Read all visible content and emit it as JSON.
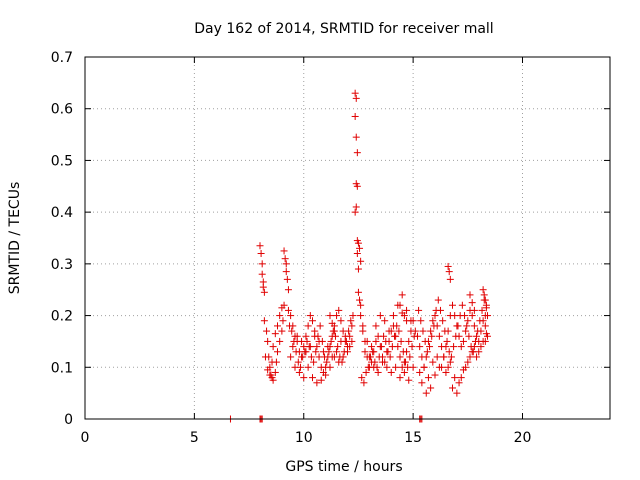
{
  "chart_data": {
    "type": "scatter",
    "title": "Day 162 of 2014, SRMTID for receiver mall",
    "xlabel": "GPS time / hours",
    "ylabel": "SRMTID / TECUs",
    "xlim": [
      0,
      24
    ],
    "ylim": [
      0,
      0.7
    ],
    "xticks": [
      0,
      5,
      10,
      15,
      20
    ],
    "xtick_labels": [
      "0",
      "5",
      "10",
      "15",
      "20"
    ],
    "yticks": [
      0,
      0.1,
      0.2,
      0.3,
      0.4,
      0.5,
      0.6,
      0.7
    ],
    "ytick_labels": [
      "0",
      "0.1",
      "0.2",
      "0.3",
      "0.4",
      "0.5",
      "0.6",
      "0.7"
    ],
    "grid": true,
    "marker": "plus",
    "color": "#e00000",
    "series": [
      {
        "name": "SRMTID",
        "x": [
          6.65,
          8.0,
          8.05,
          8.1,
          15.3,
          15.35,
          15.4,
          8.0,
          8.05,
          8.1,
          8.1,
          8.15,
          8.15,
          8.2,
          9.1,
          9.15,
          9.2,
          9.2,
          9.25,
          9.3,
          12.35,
          12.4,
          12.35,
          12.4,
          12.45,
          12.4,
          12.45,
          12.4,
          12.35,
          12.45,
          12.5,
          12.55,
          12.45,
          12.6,
          12.5,
          16.6,
          16.65,
          16.7,
          8.2,
          8.3,
          8.35,
          8.4,
          8.45,
          8.5,
          8.55,
          8.6,
          8.7,
          8.75,
          8.8,
          8.9,
          9.0,
          9.05,
          8.25,
          8.35,
          8.45,
          8.55,
          8.6,
          8.7,
          8.8,
          8.9,
          9.0,
          9.1,
          9.3,
          9.4,
          9.5,
          9.6,
          9.7,
          9.8,
          9.9,
          10.0,
          10.1,
          10.2,
          10.3,
          10.4,
          10.5,
          10.6,
          10.7,
          10.8,
          10.9,
          11.0,
          11.1,
          11.2,
          11.3,
          11.4,
          11.5,
          11.6,
          11.7,
          11.8,
          11.9,
          12.0,
          12.1,
          12.2,
          9.35,
          9.45,
          9.55,
          9.65,
          9.75,
          9.85,
          9.95,
          10.05,
          10.15,
          10.25,
          10.35,
          10.45,
          10.55,
          10.65,
          10.75,
          10.85,
          10.95,
          11.05,
          11.15,
          11.25,
          11.35,
          11.45,
          11.55,
          11.65,
          11.75,
          11.85,
          11.95,
          12.05,
          12.15,
          12.25,
          9.4,
          9.6,
          9.8,
          10.0,
          10.2,
          10.4,
          10.6,
          10.8,
          11.0,
          11.2,
          11.4,
          11.6,
          11.8,
          12.0,
          12.2,
          9.5,
          9.7,
          9.9,
          10.1,
          10.3,
          10.5,
          10.7,
          10.9,
          11.1,
          11.3,
          11.5,
          11.7,
          11.9,
          12.1,
          12.6,
          12.7,
          12.8,
          12.9,
          13.0,
          13.1,
          13.2,
          13.3,
          13.4,
          13.5,
          13.6,
          13.7,
          13.8,
          13.9,
          14.0,
          14.1,
          14.2,
          14.3,
          14.4,
          14.5,
          14.6,
          14.7,
          14.8,
          14.9,
          15.0,
          12.65,
          12.75,
          12.85,
          12.95,
          13.05,
          13.15,
          13.25,
          13.35,
          13.45,
          13.55,
          13.65,
          13.75,
          13.85,
          13.95,
          14.05,
          14.15,
          14.25,
          14.35,
          14.45,
          14.55,
          14.65,
          14.75,
          14.85,
          14.95,
          15.05,
          12.7,
          12.9,
          13.1,
          13.3,
          13.5,
          13.7,
          13.9,
          14.1,
          14.3,
          14.5,
          14.7,
          14.9,
          15.1,
          12.8,
          13.0,
          13.2,
          13.4,
          13.6,
          13.8,
          14.0,
          14.2,
          14.4,
          14.6,
          14.8,
          15.0,
          15.2,
          15.3,
          15.4,
          15.5,
          15.6,
          15.7,
          15.8,
          15.9,
          16.0,
          16.1,
          16.2,
          16.3,
          16.4,
          16.5,
          16.6,
          16.7,
          16.8,
          16.9,
          17.0,
          17.1,
          17.2,
          17.3,
          17.4,
          17.5,
          17.6,
          17.7,
          17.8,
          17.9,
          18.0,
          18.1,
          18.2,
          18.3,
          15.25,
          15.35,
          15.45,
          15.55,
          15.65,
          15.75,
          15.85,
          15.95,
          16.05,
          16.15,
          16.25,
          16.35,
          16.45,
          16.55,
          16.65,
          16.75,
          16.85,
          16.95,
          17.05,
          17.15,
          17.25,
          17.35,
          17.45,
          17.55,
          17.65,
          17.75,
          17.85,
          17.95,
          18.05,
          18.15,
          18.25,
          18.35,
          15.3,
          15.5,
          15.7,
          15.9,
          16.1,
          16.3,
          16.5,
          16.7,
          16.9,
          17.1,
          17.3,
          17.5,
          17.7,
          17.9,
          18.1,
          18.3,
          15.4,
          15.6,
          15.8,
          16.0,
          16.2,
          16.4,
          16.6,
          16.8,
          17.0,
          17.2,
          17.4,
          17.6,
          17.8,
          18.0,
          18.2,
          18.4,
          18.2,
          18.25,
          18.3,
          18.35,
          18.4,
          18.3,
          18.35,
          17.6,
          17.7,
          17.8,
          14.4,
          14.5,
          14.6,
          14.7,
          12.5,
          12.55,
          12.6,
          11.2,
          11.3,
          11.4
        ],
        "y": [
          0.0,
          0.0,
          0.0,
          0.0,
          0.0,
          0.0,
          0.0,
          0.335,
          0.32,
          0.3,
          0.28,
          0.265,
          0.255,
          0.245,
          0.325,
          0.31,
          0.3,
          0.285,
          0.27,
          0.25,
          0.63,
          0.62,
          0.585,
          0.545,
          0.515,
          0.455,
          0.45,
          0.41,
          0.4,
          0.345,
          0.34,
          0.33,
          0.32,
          0.305,
          0.29,
          0.295,
          0.285,
          0.27,
          0.19,
          0.17,
          0.15,
          0.12,
          0.1,
          0.085,
          0.08,
          0.075,
          0.09,
          0.11,
          0.13,
          0.15,
          0.17,
          0.19,
          0.12,
          0.095,
          0.085,
          0.11,
          0.14,
          0.165,
          0.18,
          0.2,
          0.215,
          0.22,
          0.21,
          0.2,
          0.18,
          0.16,
          0.15,
          0.13,
          0.12,
          0.14,
          0.16,
          0.18,
          0.2,
          0.19,
          0.17,
          0.14,
          0.12,
          0.1,
          0.09,
          0.1,
          0.12,
          0.14,
          0.16,
          0.18,
          0.2,
          0.21,
          0.19,
          0.17,
          0.15,
          0.14,
          0.16,
          0.18,
          0.18,
          0.17,
          0.15,
          0.13,
          0.11,
          0.1,
          0.12,
          0.13,
          0.15,
          0.14,
          0.12,
          0.11,
          0.13,
          0.16,
          0.18,
          0.15,
          0.12,
          0.11,
          0.13,
          0.15,
          0.17,
          0.16,
          0.14,
          0.12,
          0.11,
          0.13,
          0.15,
          0.17,
          0.19,
          0.2,
          0.12,
          0.1,
          0.09,
          0.08,
          0.1,
          0.08,
          0.07,
          0.075,
          0.085,
          0.1,
          0.12,
          0.11,
          0.12,
          0.13,
          0.15,
          0.14,
          0.16,
          0.15,
          0.13,
          0.14,
          0.16,
          0.15,
          0.13,
          0.14,
          0.12,
          0.13,
          0.15,
          0.16,
          0.14,
          0.2,
          0.18,
          0.15,
          0.12,
          0.1,
          0.11,
          0.13,
          0.15,
          0.16,
          0.14,
          0.12,
          0.11,
          0.13,
          0.15,
          0.17,
          0.18,
          0.16,
          0.14,
          0.12,
          0.1,
          0.11,
          0.13,
          0.15,
          0.17,
          0.19,
          0.08,
          0.07,
          0.09,
          0.1,
          0.12,
          0.13,
          0.11,
          0.1,
          0.12,
          0.14,
          0.16,
          0.15,
          0.13,
          0.12,
          0.14,
          0.16,
          0.18,
          0.17,
          0.15,
          0.13,
          0.11,
          0.1,
          0.12,
          0.14,
          0.16,
          0.17,
          0.15,
          0.14,
          0.18,
          0.2,
          0.19,
          0.17,
          0.2,
          0.22,
          0.24,
          0.21,
          0.19,
          0.17,
          0.13,
          0.12,
          0.1,
          0.09,
          0.11,
          0.1,
          0.09,
          0.1,
          0.08,
          0.09,
          0.075,
          0.1,
          0.16,
          0.14,
          0.12,
          0.1,
          0.12,
          0.15,
          0.17,
          0.19,
          0.2,
          0.18,
          0.16,
          0.14,
          0.12,
          0.14,
          0.17,
          0.2,
          0.22,
          0.2,
          0.18,
          0.16,
          0.14,
          0.15,
          0.17,
          0.19,
          0.21,
          0.2,
          0.18,
          0.16,
          0.15,
          0.17,
          0.19,
          0.2,
          0.21,
          0.19,
          0.17,
          0.15,
          0.13,
          0.14,
          0.16,
          0.18,
          0.21,
          0.23,
          0.21,
          0.19,
          0.17,
          0.15,
          0.13,
          0.12,
          0.14,
          0.16,
          0.18,
          0.2,
          0.22,
          0.2,
          0.18,
          0.16,
          0.14,
          0.13,
          0.15,
          0.17,
          0.19,
          0.21,
          0.23,
          0.22,
          0.09,
          0.1,
          0.08,
          0.11,
          0.12,
          0.1,
          0.09,
          0.11,
          0.08,
          0.07,
          0.095,
          0.11,
          0.13,
          0.12,
          0.14,
          0.15,
          0.07,
          0.05,
          0.06,
          0.085,
          0.1,
          0.12,
          0.1,
          0.06,
          0.05,
          0.08,
          0.1,
          0.12,
          0.14,
          0.13,
          0.15,
          0.16,
          0.25,
          0.24,
          0.23,
          0.215,
          0.2,
          0.18,
          0.165,
          0.24,
          0.225,
          0.21,
          0.22,
          0.205,
          0.2,
          0.19,
          0.245,
          0.23,
          0.22,
          0.2,
          0.185,
          0.17
        ]
      }
    ]
  }
}
